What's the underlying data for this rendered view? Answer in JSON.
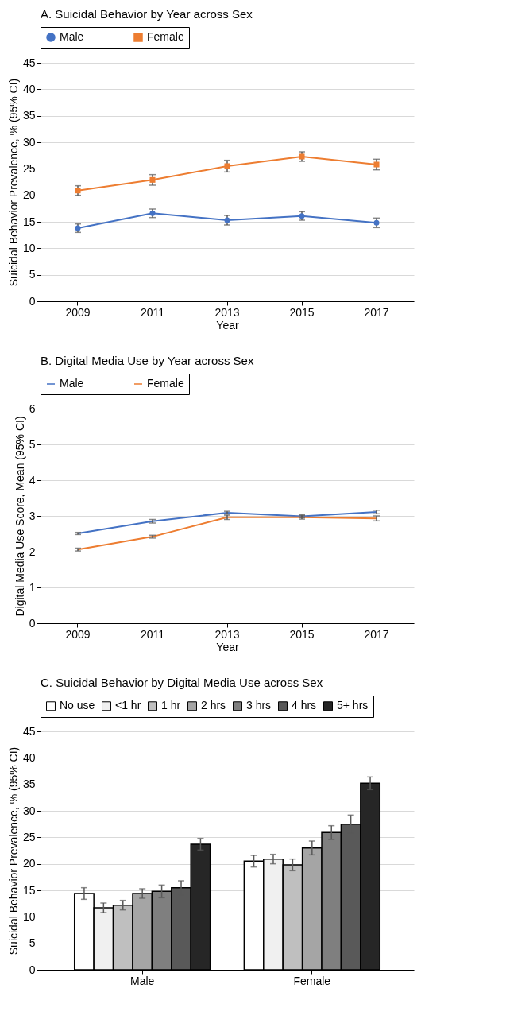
{
  "chart_data": [
    {
      "type": "line",
      "title": "A. Suicidal Behavior by Year across Sex",
      "xlabel": "Year",
      "ylabel": "Suicidal Behavior Prevalence, % (95% CI)",
      "categories": [
        "2009",
        "2011",
        "2013",
        "2015",
        "2017"
      ],
      "ylim": [
        0,
        45
      ],
      "yticks": [
        0,
        5,
        10,
        15,
        20,
        25,
        30,
        35,
        40,
        45
      ],
      "grid": "y",
      "legend": "top",
      "series": [
        {
          "name": "Male",
          "color": "#4472c4",
          "marker": "circle",
          "values": [
            13.8,
            16.6,
            15.3,
            16.1,
            14.8
          ],
          "errors": [
            0.8,
            0.8,
            0.9,
            0.8,
            0.9
          ]
        },
        {
          "name": "Female",
          "color": "#ed7d31",
          "marker": "square",
          "values": [
            20.9,
            22.9,
            25.5,
            27.3,
            25.8
          ],
          "errors": [
            0.9,
            1.0,
            1.1,
            0.9,
            1.0
          ]
        }
      ]
    },
    {
      "type": "line",
      "title": "B. Digital Media Use by Year across Sex",
      "xlabel": "Year",
      "ylabel": "Digital Media Use Score, Mean (95% CI)",
      "categories": [
        "2009",
        "2011",
        "2013",
        "2015",
        "2017"
      ],
      "ylim": [
        0,
        6
      ],
      "yticks": [
        0,
        1,
        2,
        3,
        4,
        5,
        6
      ],
      "grid": "y",
      "legend": "top",
      "series": [
        {
          "name": "Male",
          "color": "#4472c4",
          "marker": "none",
          "values": [
            2.51,
            2.85,
            3.09,
            2.99,
            3.11
          ],
          "errors": [
            0.03,
            0.05,
            0.04,
            0.04,
            0.05
          ]
        },
        {
          "name": "Female",
          "color": "#ed7d31",
          "marker": "none",
          "values": [
            2.06,
            2.42,
            2.96,
            2.96,
            2.93
          ],
          "errors": [
            0.04,
            0.04,
            0.06,
            0.05,
            0.07
          ]
        }
      ]
    },
    {
      "type": "bar",
      "title": "C. Suicidal Behavior by Digital Media Use across Sex",
      "ylabel": "Suicidal Behavior Prevalence, % (95% CI)",
      "categories": [
        "Male",
        "Female"
      ],
      "ylim": [
        0,
        45
      ],
      "yticks": [
        0,
        5,
        10,
        15,
        20,
        25,
        30,
        35,
        40,
        45
      ],
      "grid": "y",
      "legend": "top",
      "series": [
        {
          "name": "No use",
          "color": "#ffffff",
          "values": [
            14.4,
            20.5
          ],
          "errors": [
            1.1,
            1.1
          ]
        },
        {
          "name": "<1 hr",
          "color": "#f0f0f0",
          "values": [
            11.7,
            20.9
          ],
          "errors": [
            0.9,
            0.9
          ]
        },
        {
          "name": "1 hr",
          "color": "#bfbfbf",
          "values": [
            12.2,
            19.8
          ],
          "errors": [
            0.9,
            1.1
          ]
        },
        {
          "name": "2 hrs",
          "color": "#a5a5a5",
          "values": [
            14.4,
            23.0
          ],
          "errors": [
            0.9,
            1.3
          ]
        },
        {
          "name": "3 hrs",
          "color": "#7f7f7f",
          "values": [
            14.8,
            25.9
          ],
          "errors": [
            1.2,
            1.3
          ]
        },
        {
          "name": "4 hrs",
          "color": "#595959",
          "values": [
            15.5,
            27.5
          ],
          "errors": [
            1.3,
            1.7
          ]
        },
        {
          "name": "5+ hrs",
          "color": "#262626",
          "values": [
            23.7,
            35.2
          ],
          "errors": [
            1.1,
            1.2
          ]
        }
      ]
    }
  ]
}
